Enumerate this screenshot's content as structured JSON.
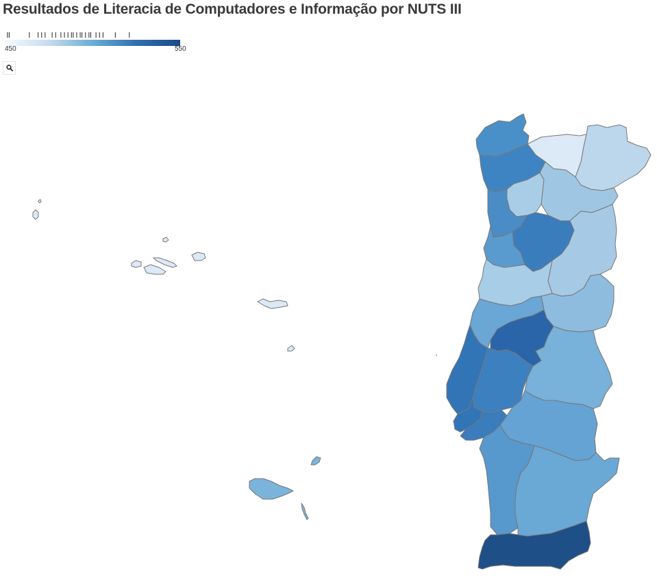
{
  "title": "Resultados de Literacia de Computadores e Informação por NUTS III",
  "legend": {
    "min_label": "450",
    "max_label": "550",
    "min": 450,
    "max": 550,
    "color_low": "#f7fbff",
    "color_high": "#1c4a86",
    "rug_values": [
      451.5,
      452.5,
      464,
      469,
      471,
      473,
      477,
      479,
      482,
      484,
      486,
      488,
      489,
      491,
      493,
      494,
      496,
      498,
      499,
      502,
      504,
      506,
      513,
      521
    ]
  },
  "zoom_button": {
    "icon": "search-icon"
  },
  "map": {
    "stroke_color": "#777777",
    "regions": [
      {
        "id": "minho-coast",
        "fill": "#4a90c8"
      },
      {
        "id": "alto-minho-east",
        "fill": "#dce9f6"
      },
      {
        "id": "terras-tras-os-montes",
        "fill": "#bcd6ec"
      },
      {
        "id": "cavado-ave",
        "fill": "#3f84c2"
      },
      {
        "id": "tamega",
        "fill": "#a9cde6"
      },
      {
        "id": "douro",
        "fill": "#9fc7e3"
      },
      {
        "id": "porto-area",
        "fill": "#4a8cc6"
      },
      {
        "id": "viseu-daolafoes",
        "fill": "#3a7dbd"
      },
      {
        "id": "beiras-serra-estrela",
        "fill": "#a6cae5"
      },
      {
        "id": "aveiro",
        "fill": "#5a9bcf"
      },
      {
        "id": "coimbra",
        "fill": "#a8cde6"
      },
      {
        "id": "beira-baixa",
        "fill": "#8ebcde"
      },
      {
        "id": "leiria",
        "fill": "#6aa6d6"
      },
      {
        "id": "medio-tejo",
        "fill": "#2965a8"
      },
      {
        "id": "oeste",
        "fill": "#3175b6"
      },
      {
        "id": "leziria-tejo",
        "fill": "#3d80c0"
      },
      {
        "id": "alto-alentejo",
        "fill": "#78b1da"
      },
      {
        "id": "alentejo-central",
        "fill": "#64a3d3"
      },
      {
        "id": "lisboa",
        "fill": "#3076b7"
      },
      {
        "id": "setubal",
        "fill": "#3a7cbc"
      },
      {
        "id": "alentejo-litoral",
        "fill": "#5798cd"
      },
      {
        "id": "baixo-alentejo",
        "fill": "#6aa8d6"
      },
      {
        "id": "algarve",
        "fill": "#1f4f87"
      },
      {
        "id": "madeira",
        "fill": "#7ab4db"
      },
      {
        "id": "porto-santo",
        "fill": "#7ab4db"
      },
      {
        "id": "desertas",
        "fill": "#7ab4db"
      },
      {
        "id": "azores-flores",
        "fill": "#dce9f6"
      },
      {
        "id": "azores-corvo",
        "fill": "#dce9f6"
      },
      {
        "id": "azores-graciosa",
        "fill": "#dce9f6"
      },
      {
        "id": "azores-sao-jorge",
        "fill": "#dce9f6"
      },
      {
        "id": "azores-pico",
        "fill": "#dce9f6"
      },
      {
        "id": "azores-faial",
        "fill": "#dce9f6"
      },
      {
        "id": "azores-terceira",
        "fill": "#dce9f6"
      },
      {
        "id": "azores-sao-miguel",
        "fill": "#dce9f6"
      },
      {
        "id": "azores-santa-maria",
        "fill": "#dce9f6"
      }
    ]
  }
}
